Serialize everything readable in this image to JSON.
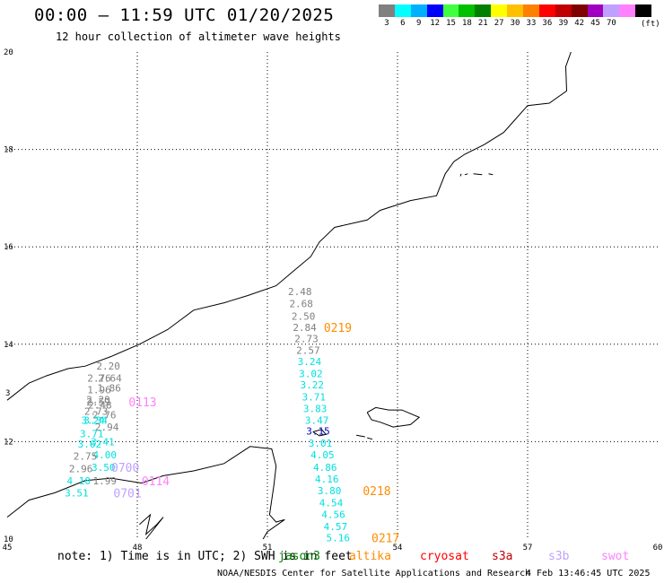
{
  "header": {
    "title": "00:00 – 11:59 UTC 01/20/2025",
    "subtitle": "12 hour collection of altimeter wave heights"
  },
  "colorbar": {
    "unit": "(ft)",
    "bins": [
      {
        "color": "#808080",
        "label": "3"
      },
      {
        "color": "#00ffff",
        "label": "6"
      },
      {
        "color": "#00b0ff",
        "label": "9"
      },
      {
        "color": "#0000ff",
        "label": "12"
      },
      {
        "color": "#40ff40",
        "label": "15"
      },
      {
        "color": "#00c000",
        "label": "18"
      },
      {
        "color": "#008000",
        "label": "21"
      },
      {
        "color": "#ffff00",
        "label": "27"
      },
      {
        "color": "#ffc000",
        "label": "30"
      },
      {
        "color": "#ff8000",
        "label": "33"
      },
      {
        "color": "#ff0000",
        "label": "36"
      },
      {
        "color": "#c00000",
        "label": "39"
      },
      {
        "color": "#800000",
        "label": "42"
      },
      {
        "color": "#a000c0",
        "label": "45"
      },
      {
        "color": "#c0a0ff",
        "label": "70"
      },
      {
        "color": "#ff80ff",
        "label": ""
      },
      {
        "color": "#000000",
        "label": ""
      }
    ]
  },
  "map": {
    "lon_ticks": [
      "45",
      "48",
      "51",
      "54",
      "57",
      "60"
    ],
    "lat_ticks": [
      "20",
      "18",
      "16",
      "14",
      "12",
      "10"
    ],
    "lon_range": [
      45,
      60
    ],
    "lat_range": [
      10,
      20
    ],
    "lat_tick_partial": "3"
  },
  "observations": [
    {
      "text": "2.48",
      "color": "#808080",
      "lon": 51.75,
      "lat": 15.08
    },
    {
      "text": "2.68",
      "color": "#808080",
      "lon": 51.78,
      "lat": 14.83
    },
    {
      "text": "2.50",
      "color": "#808080",
      "lon": 51.83,
      "lat": 14.58
    },
    {
      "text": "2.84",
      "color": "#808080",
      "lon": 51.86,
      "lat": 14.35
    },
    {
      "text": "2.73",
      "color": "#808080",
      "lon": 51.9,
      "lat": 14.12
    },
    {
      "text": "2.57",
      "color": "#808080",
      "lon": 51.94,
      "lat": 13.88
    },
    {
      "text": "3.24",
      "color": "#00e0e0",
      "lon": 51.97,
      "lat": 13.65
    },
    {
      "text": "3.02",
      "color": "#00e0e0",
      "lon": 52.0,
      "lat": 13.4
    },
    {
      "text": "3.22",
      "color": "#00e0e0",
      "lon": 52.03,
      "lat": 13.17
    },
    {
      "text": "3.71",
      "color": "#00e0e0",
      "lon": 52.07,
      "lat": 12.92
    },
    {
      "text": "3.83",
      "color": "#00e0e0",
      "lon": 52.1,
      "lat": 12.68
    },
    {
      "text": "3.47",
      "color": "#00e0e0",
      "lon": 52.14,
      "lat": 12.44
    },
    {
      "text": "3.15",
      "color": "#0000c0",
      "lon": 52.17,
      "lat": 12.22
    },
    {
      "text": "3.01",
      "color": "#00e0e0",
      "lon": 52.22,
      "lat": 11.97
    },
    {
      "text": "4.05",
      "color": "#00e0e0",
      "lon": 52.27,
      "lat": 11.73
    },
    {
      "text": "4.86",
      "color": "#00e0e0",
      "lon": 52.33,
      "lat": 11.47
    },
    {
      "text": "4.16",
      "color": "#00e0e0",
      "lon": 52.37,
      "lat": 11.23
    },
    {
      "text": "3.80",
      "color": "#00e0e0",
      "lon": 52.43,
      "lat": 10.99
    },
    {
      "text": "4.54",
      "color": "#00e0e0",
      "lon": 52.47,
      "lat": 10.75
    },
    {
      "text": "4.56",
      "color": "#00e0e0",
      "lon": 52.52,
      "lat": 10.51
    },
    {
      "text": "4.57",
      "color": "#00e0e0",
      "lon": 52.57,
      "lat": 10.26
    },
    {
      "text": "5.16",
      "color": "#00e0e0",
      "lon": 52.63,
      "lat": 10.03
    },
    {
      "text": "2.20",
      "color": "#808080",
      "lon": 47.33,
      "lat": 13.55
    },
    {
      "text": "2.76",
      "color": "#808080",
      "lon": 47.12,
      "lat": 13.31
    },
    {
      "text": "2.64",
      "color": "#808080",
      "lon": 47.37,
      "lat": 13.31
    },
    {
      "text": "1.96",
      "color": "#808080",
      "lon": 47.12,
      "lat": 13.07
    },
    {
      "text": "1.86",
      "color": "#808080",
      "lon": 47.35,
      "lat": 13.1
    },
    {
      "text": "2.20",
      "color": "#808080",
      "lon": 47.1,
      "lat": 12.86
    },
    {
      "text": "2.59",
      "color": "#808080",
      "lon": 47.1,
      "lat": 12.82
    },
    {
      "text": "2.48",
      "color": "#808080",
      "lon": 47.14,
      "lat": 12.75
    },
    {
      "text": "2.73",
      "color": "#808080",
      "lon": 47.05,
      "lat": 12.62
    },
    {
      "text": "2.76",
      "color": "#808080",
      "lon": 47.24,
      "lat": 12.55
    },
    {
      "text": "3.24",
      "color": "#00e0e0",
      "lon": 46.98,
      "lat": 12.44
    },
    {
      "text": "3.34",
      "color": "#00e0e0",
      "lon": 47.04,
      "lat": 12.44
    },
    {
      "text": "2.94",
      "color": "#808080",
      "lon": 47.3,
      "lat": 12.3
    },
    {
      "text": "3.71",
      "color": "#00e0e0",
      "lon": 46.95,
      "lat": 12.16
    },
    {
      "text": "3.62",
      "color": "#00e0e0",
      "lon": 46.9,
      "lat": 11.95
    },
    {
      "text": "3.41",
      "color": "#00e0e0",
      "lon": 47.2,
      "lat": 12.0
    },
    {
      "text": "4.00",
      "color": "#00e0e0",
      "lon": 47.25,
      "lat": 11.73
    },
    {
      "text": "2.75",
      "color": "#808080",
      "lon": 46.8,
      "lat": 11.7
    },
    {
      "text": "2.96",
      "color": "#808080",
      "lon": 46.7,
      "lat": 11.45
    },
    {
      "text": "3.50",
      "color": "#00e0e0",
      "lon": 47.22,
      "lat": 11.47
    },
    {
      "text": "4.10",
      "color": "#00e0e0",
      "lon": 46.65,
      "lat": 11.2
    },
    {
      "text": "1.99",
      "color": "#808080",
      "lon": 47.25,
      "lat": 11.2
    },
    {
      "text": "3.51",
      "color": "#00e0e0",
      "lon": 46.6,
      "lat": 10.95
    }
  ],
  "pass_ids": [
    {
      "text": "0219",
      "color": "#ff8c00",
      "lon": 52.3,
      "lat": 14.35
    },
    {
      "text": "0218",
      "color": "#ff8c00",
      "lon": 53.2,
      "lat": 10.99
    },
    {
      "text": "0217",
      "color": "#ff8c00",
      "lon": 53.4,
      "lat": 10.03
    },
    {
      "text": "0113",
      "color": "#ff80ff",
      "lon": 47.8,
      "lat": 12.82
    },
    {
      "text": "0114",
      "color": "#ff80ff",
      "lon": 48.1,
      "lat": 11.2
    },
    {
      "text": "0700",
      "color": "#c0a0ff",
      "lon": 47.4,
      "lat": 11.47
    },
    {
      "text": "0701",
      "color": "#c0a0ff",
      "lon": 47.45,
      "lat": 10.95
    }
  ],
  "footer": {
    "note": "note: 1) Time is in UTC; 2) SWH is in feet",
    "satellites": [
      {
        "name": "jason3",
        "color": "#008000"
      },
      {
        "name": "altika",
        "color": "#ff8c00"
      },
      {
        "name": "cryosat",
        "color": "#ff0000"
      },
      {
        "name": "s3a",
        "color": "#c00000"
      },
      {
        "name": "s3b",
        "color": "#c0a0ff"
      },
      {
        "name": "swot",
        "color": "#ff80ff"
      }
    ],
    "credit": "NOAA/NESDIS Center for Satellite Applications and Research",
    "timestamp": "4 Feb 13:46:45 UTC 2025"
  }
}
